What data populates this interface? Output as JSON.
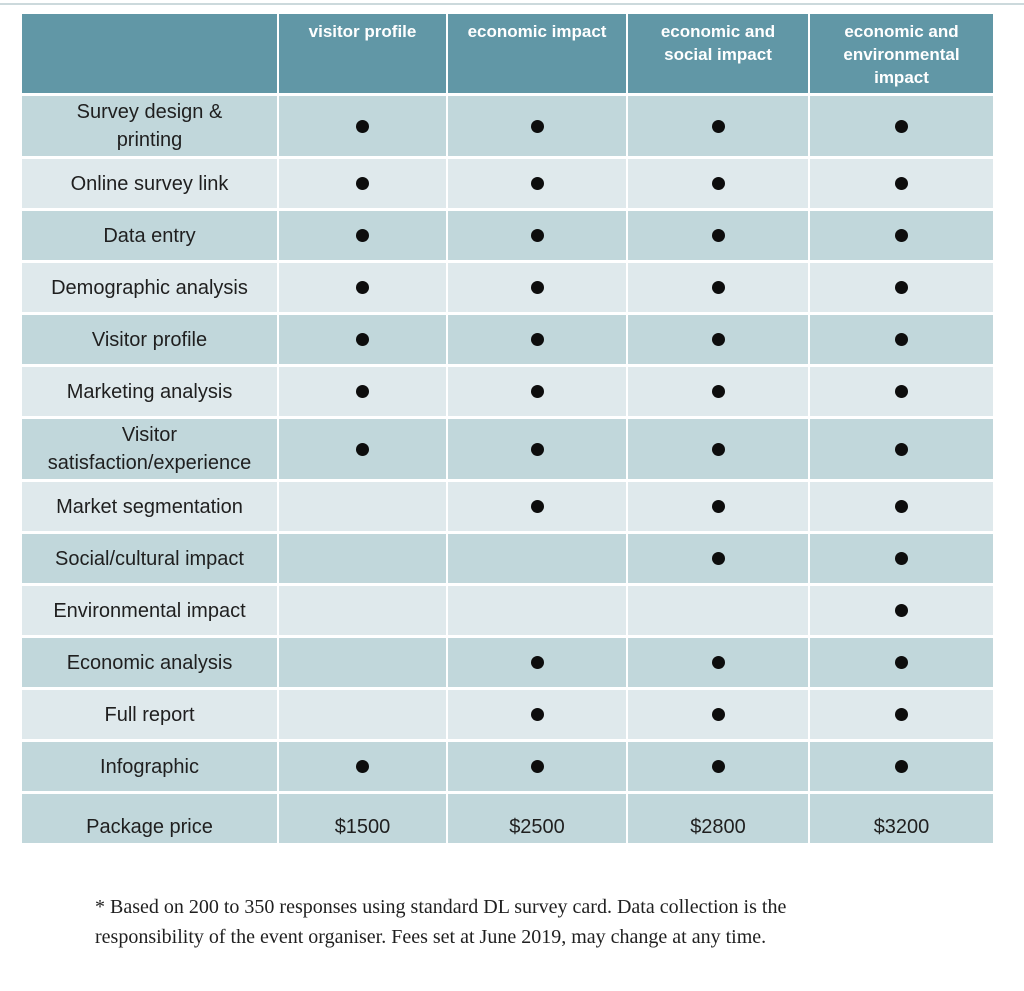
{
  "colors": {
    "header_bg": "#6197a6",
    "header_text": "#ffffff",
    "row_dark": "#c1d7db",
    "row_light": "#dfe9ec",
    "dot": "#0d0d0d",
    "body_text": "#1f1f1f",
    "top_rule": "#ccd9dc"
  },
  "table": {
    "corner_label": "",
    "columns": [
      "visitor profile",
      "economic impact",
      "economic and social impact",
      "economic and environmental impact"
    ],
    "rows": [
      {
        "label": "Survey design &\nprinting",
        "included": [
          true,
          true,
          true,
          true
        ]
      },
      {
        "label": "Online survey link",
        "included": [
          true,
          true,
          true,
          true
        ]
      },
      {
        "label": "Data entry",
        "included": [
          true,
          true,
          true,
          true
        ]
      },
      {
        "label": "Demographic analysis",
        "included": [
          true,
          true,
          true,
          true
        ]
      },
      {
        "label": "Visitor profile",
        "included": [
          true,
          true,
          true,
          true
        ]
      },
      {
        "label": "Marketing analysis",
        "included": [
          true,
          true,
          true,
          true
        ]
      },
      {
        "label": "Visitor\nsatisfaction/experience",
        "included": [
          true,
          true,
          true,
          true
        ]
      },
      {
        "label": "Market segmentation",
        "included": [
          false,
          true,
          true,
          true
        ]
      },
      {
        "label": "Social/cultural impact",
        "included": [
          false,
          false,
          true,
          true
        ]
      },
      {
        "label": "Environmental impact",
        "included": [
          false,
          false,
          false,
          true
        ]
      },
      {
        "label": "Economic analysis",
        "included": [
          false,
          true,
          true,
          true
        ]
      },
      {
        "label": "Full report",
        "included": [
          false,
          true,
          true,
          true
        ]
      },
      {
        "label": "Infographic",
        "included": [
          true,
          true,
          true,
          true
        ]
      }
    ],
    "price_row": {
      "label": "Package price",
      "values": [
        "$1500",
        "$2500",
        "$2800",
        "$3200"
      ]
    }
  },
  "footnote": "* Based on 200 to 350 responses using standard DL survey card. Data collection is the\nresponsibility of the event organiser. Fees set at June 2019, may change at any time."
}
